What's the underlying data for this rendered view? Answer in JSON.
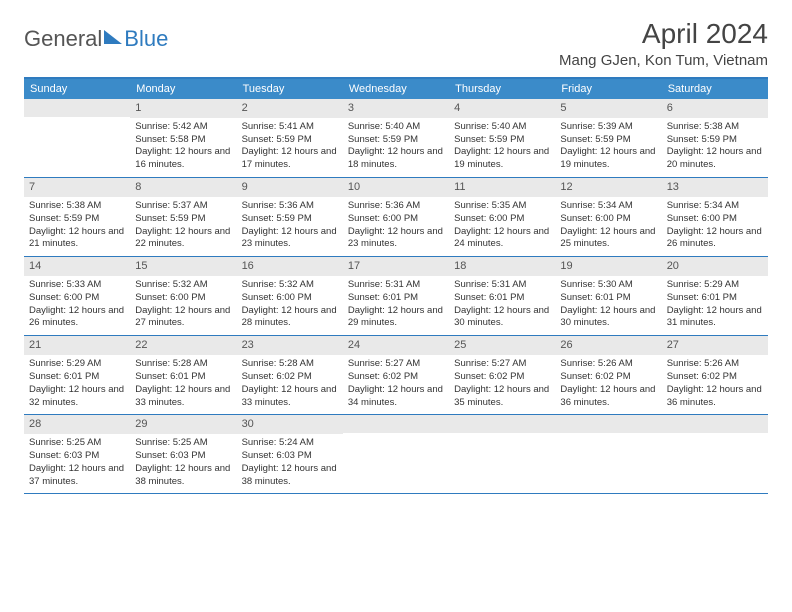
{
  "logo": {
    "general": "General",
    "blue": "Blue"
  },
  "title": "April 2024",
  "location": "Mang GJen, Kon Tum, Vietnam",
  "colors": {
    "accent": "#3b8bc9",
    "border": "#2f7bbf",
    "day_num_bg": "#e9e9e9",
    "text": "#333333",
    "header_text": "#ffffff",
    "background": "#ffffff"
  },
  "typography": {
    "title_fontsize": 28,
    "location_fontsize": 15,
    "header_fontsize": 11,
    "daynum_fontsize": 11,
    "body_fontsize": 9.5
  },
  "day_headers": [
    "Sunday",
    "Monday",
    "Tuesday",
    "Wednesday",
    "Thursday",
    "Friday",
    "Saturday"
  ],
  "weeks": [
    [
      {
        "n": "",
        "sunrise": "",
        "sunset": "",
        "daylight": ""
      },
      {
        "n": "1",
        "sunrise": "Sunrise: 5:42 AM",
        "sunset": "Sunset: 5:58 PM",
        "daylight": "Daylight: 12 hours and 16 minutes."
      },
      {
        "n": "2",
        "sunrise": "Sunrise: 5:41 AM",
        "sunset": "Sunset: 5:59 PM",
        "daylight": "Daylight: 12 hours and 17 minutes."
      },
      {
        "n": "3",
        "sunrise": "Sunrise: 5:40 AM",
        "sunset": "Sunset: 5:59 PM",
        "daylight": "Daylight: 12 hours and 18 minutes."
      },
      {
        "n": "4",
        "sunrise": "Sunrise: 5:40 AM",
        "sunset": "Sunset: 5:59 PM",
        "daylight": "Daylight: 12 hours and 19 minutes."
      },
      {
        "n": "5",
        "sunrise": "Sunrise: 5:39 AM",
        "sunset": "Sunset: 5:59 PM",
        "daylight": "Daylight: 12 hours and 19 minutes."
      },
      {
        "n": "6",
        "sunrise": "Sunrise: 5:38 AM",
        "sunset": "Sunset: 5:59 PM",
        "daylight": "Daylight: 12 hours and 20 minutes."
      }
    ],
    [
      {
        "n": "7",
        "sunrise": "Sunrise: 5:38 AM",
        "sunset": "Sunset: 5:59 PM",
        "daylight": "Daylight: 12 hours and 21 minutes."
      },
      {
        "n": "8",
        "sunrise": "Sunrise: 5:37 AM",
        "sunset": "Sunset: 5:59 PM",
        "daylight": "Daylight: 12 hours and 22 minutes."
      },
      {
        "n": "9",
        "sunrise": "Sunrise: 5:36 AM",
        "sunset": "Sunset: 5:59 PM",
        "daylight": "Daylight: 12 hours and 23 minutes."
      },
      {
        "n": "10",
        "sunrise": "Sunrise: 5:36 AM",
        "sunset": "Sunset: 6:00 PM",
        "daylight": "Daylight: 12 hours and 23 minutes."
      },
      {
        "n": "11",
        "sunrise": "Sunrise: 5:35 AM",
        "sunset": "Sunset: 6:00 PM",
        "daylight": "Daylight: 12 hours and 24 minutes."
      },
      {
        "n": "12",
        "sunrise": "Sunrise: 5:34 AM",
        "sunset": "Sunset: 6:00 PM",
        "daylight": "Daylight: 12 hours and 25 minutes."
      },
      {
        "n": "13",
        "sunrise": "Sunrise: 5:34 AM",
        "sunset": "Sunset: 6:00 PM",
        "daylight": "Daylight: 12 hours and 26 minutes."
      }
    ],
    [
      {
        "n": "14",
        "sunrise": "Sunrise: 5:33 AM",
        "sunset": "Sunset: 6:00 PM",
        "daylight": "Daylight: 12 hours and 26 minutes."
      },
      {
        "n": "15",
        "sunrise": "Sunrise: 5:32 AM",
        "sunset": "Sunset: 6:00 PM",
        "daylight": "Daylight: 12 hours and 27 minutes."
      },
      {
        "n": "16",
        "sunrise": "Sunrise: 5:32 AM",
        "sunset": "Sunset: 6:00 PM",
        "daylight": "Daylight: 12 hours and 28 minutes."
      },
      {
        "n": "17",
        "sunrise": "Sunrise: 5:31 AM",
        "sunset": "Sunset: 6:01 PM",
        "daylight": "Daylight: 12 hours and 29 minutes."
      },
      {
        "n": "18",
        "sunrise": "Sunrise: 5:31 AM",
        "sunset": "Sunset: 6:01 PM",
        "daylight": "Daylight: 12 hours and 30 minutes."
      },
      {
        "n": "19",
        "sunrise": "Sunrise: 5:30 AM",
        "sunset": "Sunset: 6:01 PM",
        "daylight": "Daylight: 12 hours and 30 minutes."
      },
      {
        "n": "20",
        "sunrise": "Sunrise: 5:29 AM",
        "sunset": "Sunset: 6:01 PM",
        "daylight": "Daylight: 12 hours and 31 minutes."
      }
    ],
    [
      {
        "n": "21",
        "sunrise": "Sunrise: 5:29 AM",
        "sunset": "Sunset: 6:01 PM",
        "daylight": "Daylight: 12 hours and 32 minutes."
      },
      {
        "n": "22",
        "sunrise": "Sunrise: 5:28 AM",
        "sunset": "Sunset: 6:01 PM",
        "daylight": "Daylight: 12 hours and 33 minutes."
      },
      {
        "n": "23",
        "sunrise": "Sunrise: 5:28 AM",
        "sunset": "Sunset: 6:02 PM",
        "daylight": "Daylight: 12 hours and 33 minutes."
      },
      {
        "n": "24",
        "sunrise": "Sunrise: 5:27 AM",
        "sunset": "Sunset: 6:02 PM",
        "daylight": "Daylight: 12 hours and 34 minutes."
      },
      {
        "n": "25",
        "sunrise": "Sunrise: 5:27 AM",
        "sunset": "Sunset: 6:02 PM",
        "daylight": "Daylight: 12 hours and 35 minutes."
      },
      {
        "n": "26",
        "sunrise": "Sunrise: 5:26 AM",
        "sunset": "Sunset: 6:02 PM",
        "daylight": "Daylight: 12 hours and 36 minutes."
      },
      {
        "n": "27",
        "sunrise": "Sunrise: 5:26 AM",
        "sunset": "Sunset: 6:02 PM",
        "daylight": "Daylight: 12 hours and 36 minutes."
      }
    ],
    [
      {
        "n": "28",
        "sunrise": "Sunrise: 5:25 AM",
        "sunset": "Sunset: 6:03 PM",
        "daylight": "Daylight: 12 hours and 37 minutes."
      },
      {
        "n": "29",
        "sunrise": "Sunrise: 5:25 AM",
        "sunset": "Sunset: 6:03 PM",
        "daylight": "Daylight: 12 hours and 38 minutes."
      },
      {
        "n": "30",
        "sunrise": "Sunrise: 5:24 AM",
        "sunset": "Sunset: 6:03 PM",
        "daylight": "Daylight: 12 hours and 38 minutes."
      },
      {
        "n": "",
        "sunrise": "",
        "sunset": "",
        "daylight": ""
      },
      {
        "n": "",
        "sunrise": "",
        "sunset": "",
        "daylight": ""
      },
      {
        "n": "",
        "sunrise": "",
        "sunset": "",
        "daylight": ""
      },
      {
        "n": "",
        "sunrise": "",
        "sunset": "",
        "daylight": ""
      }
    ]
  ]
}
